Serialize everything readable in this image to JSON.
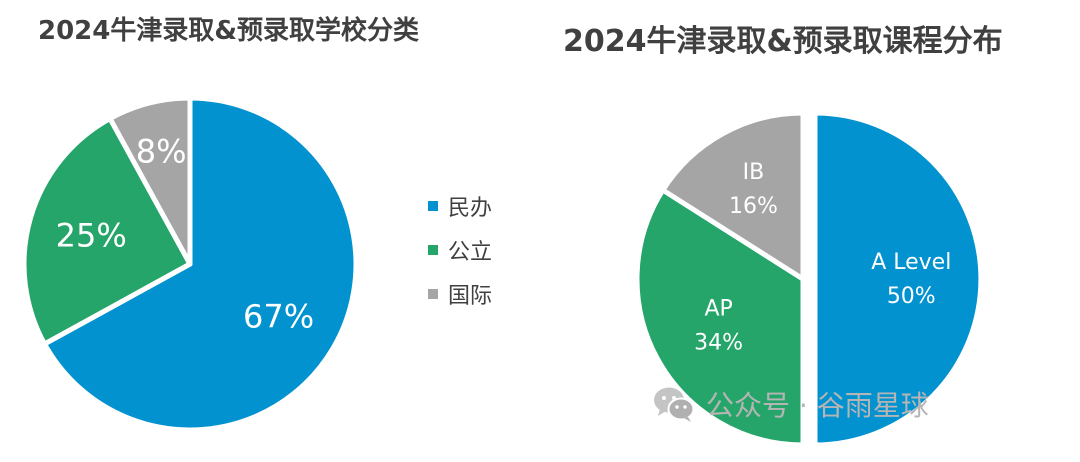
{
  "colors": {
    "blue": "#0292D0",
    "green": "#25A56A",
    "gray": "#A5A5A5",
    "title": "#404040"
  },
  "chart_data": [
    {
      "type": "pie",
      "title": "2024牛津录取&预录取学校分类",
      "labels": [
        "民办",
        "公立",
        "国际"
      ],
      "values": [
        67,
        25,
        8
      ],
      "value_labels": [
        "67%",
        "25%",
        "8%"
      ],
      "legend": "right"
    },
    {
      "type": "pie",
      "title": "2024牛津录取&预录取课程分布",
      "labels": [
        "A Level",
        "AP",
        "IB"
      ],
      "values": [
        50,
        34,
        16
      ],
      "value_labels": [
        "50%",
        "34%",
        "16%"
      ],
      "legend": "none"
    }
  ],
  "watermark": {
    "icon": "wechat-icon",
    "text": "公众号 · 谷雨星球"
  }
}
